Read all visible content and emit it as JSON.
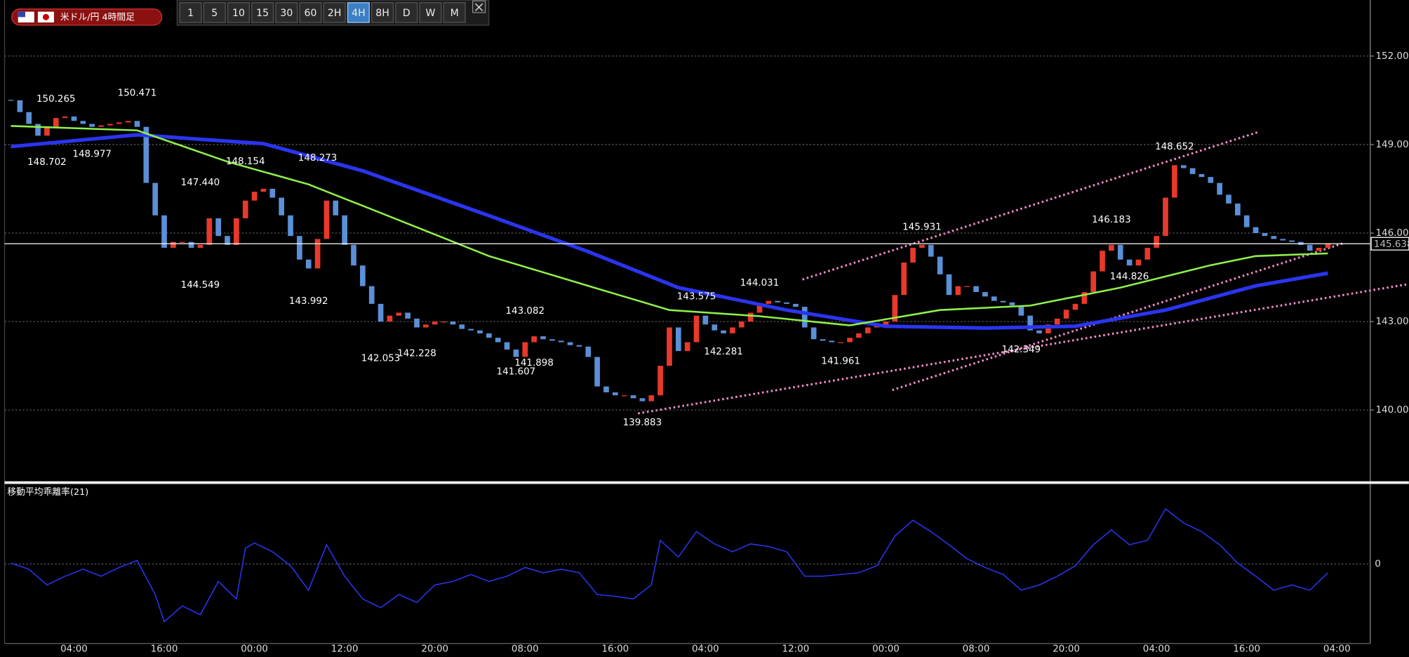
{
  "toolbar": {
    "symbol": "米ドル/円 4時間足",
    "buttons": [
      "1",
      "5",
      "10",
      "15",
      "30",
      "60",
      "2H",
      "4H",
      "8H",
      "D",
      "W",
      "M"
    ],
    "active": 7
  },
  "chart_data": [
    {
      "type": "candlestick",
      "categories": [
        null,
        null,
        null,
        null,
        null,
        null,
        null,
        "04:00",
        null,
        null,
        null,
        null,
        null,
        null,
        null,
        null,
        null,
        "16:00",
        null,
        null,
        null,
        null,
        null,
        null,
        null,
        null,
        null,
        "00:00",
        null,
        null,
        null,
        null,
        null,
        null,
        null,
        null,
        null,
        "12:00",
        null,
        null,
        null,
        null,
        null,
        null,
        null,
        null,
        null,
        "20:00",
        null,
        null,
        null,
        null,
        null,
        null,
        null,
        null,
        null,
        "08:00",
        null,
        null,
        null,
        null,
        null,
        null,
        null,
        null,
        null,
        "16:00",
        null,
        null,
        null,
        null,
        null,
        null,
        null,
        null,
        null,
        "04:00",
        null,
        null,
        null,
        null,
        null,
        null,
        null,
        null,
        null,
        "12:00",
        null,
        null,
        null,
        null,
        null,
        null,
        null,
        null,
        null,
        "00:00",
        null,
        null,
        null,
        null,
        null,
        null,
        null,
        null,
        null,
        "08:00",
        null,
        null,
        null,
        null,
        null,
        null,
        null,
        null,
        null,
        "20:00",
        null,
        null,
        null,
        null,
        null,
        null,
        null,
        null,
        null,
        "04:00",
        null,
        null,
        null,
        null,
        null,
        null,
        null,
        null,
        null,
        "16:00",
        null,
        null,
        null,
        null,
        null,
        null,
        null,
        null,
        null,
        "04:00"
      ],
      "series": [
        {
          "values": [
            150.5,
            150.1,
            149.7,
            149.3,
            149.6,
            149.9,
            149.95,
            149.8,
            149.7,
            149.6,
            149.65,
            149.7,
            149.75,
            149.8,
            149.6,
            147.7,
            146.6,
            145.5,
            145.7,
            145.7,
            145.5,
            145.6,
            146.5,
            145.9,
            145.6,
            146.5,
            147.1,
            147.4,
            147.5,
            147.2,
            146.6,
            145.9,
            145.1,
            144.8,
            145.8,
            147.1,
            146.6,
            145.6,
            144.9,
            144.2,
            143.6,
            143.0,
            143.2,
            143.3,
            143.1,
            142.8,
            142.9,
            143.0,
            143.0,
            142.9,
            142.75,
            142.7,
            142.6,
            142.45,
            142.3,
            142.05,
            141.8,
            142.3,
            142.5,
            142.4,
            142.35,
            142.3,
            142.2,
            142.15,
            141.8,
            140.8,
            140.6,
            140.5,
            140.5,
            140.4,
            140.3,
            140.5,
            141.5,
            142.8,
            142.0,
            142.3,
            143.2,
            142.9,
            142.7,
            142.6,
            142.8,
            143.0,
            143.3,
            143.6,
            143.7,
            143.65,
            143.6,
            143.5,
            142.8,
            142.4,
            142.35,
            142.3,
            142.3,
            142.45,
            142.6,
            142.8,
            142.9,
            143.0,
            143.9,
            145.0,
            145.5,
            145.6,
            145.2,
            144.6,
            143.9,
            144.2,
            144.2,
            144.0,
            143.85,
            143.7,
            143.65,
            143.55,
            143.2,
            142.7,
            142.6,
            142.9,
            143.1,
            143.4,
            143.6,
            144.0,
            144.7,
            145.4,
            145.6,
            145.1,
            144.9,
            145.1,
            145.5,
            145.9,
            147.2,
            148.3,
            148.2,
            148.0,
            147.9,
            147.7,
            147.3,
            147.0,
            146.6,
            146.2,
            146.0,
            145.9,
            145.8,
            145.75,
            145.7,
            145.6,
            145.4,
            145.5,
            145.638,
            null
          ],
          "up_color": "#e8392b",
          "down_color": "#5b8fd6"
        },
        {
          "x": [
            0,
            14,
            28,
            39,
            53,
            64,
            74,
            86,
            97,
            108,
            118,
            128,
            138,
            146
          ],
          "values": [
            148.93,
            149.33,
            149.03,
            148.11,
            146.59,
            145.37,
            144.15,
            143.39,
            142.84,
            142.78,
            142.84,
            143.39,
            144.21,
            144.64
          ],
          "color": "#2a35f0"
        },
        {
          "x": [
            0,
            14,
            24,
            33,
            43,
            53,
            64,
            73,
            83,
            93,
            103,
            113,
            123,
            133,
            138,
            146
          ],
          "values": [
            149.63,
            149.48,
            148.42,
            147.65,
            146.44,
            145.22,
            144.21,
            143.39,
            143.18,
            142.87,
            143.39,
            143.54,
            144.15,
            144.91,
            145.22,
            145.31
          ],
          "color": "#8ef04a"
        }
      ],
      "ylim": [
        137.6,
        153.9
      ],
      "yticks": [
        {
          "value": 140,
          "label": "140.000"
        },
        {
          "value": 143,
          "label": "143.000"
        },
        {
          "value": 146,
          "label": "146.000"
        },
        {
          "value": 149,
          "label": "149.000"
        },
        {
          "value": 152,
          "label": "152.000"
        }
      ],
      "grid": true,
      "last_price": 145.638,
      "high_labels": {
        "x": [
          5,
          14,
          21,
          26,
          34,
          57,
          76,
          83,
          101,
          122,
          129
        ],
        "values": [
          150.265,
          150.471,
          147.44,
          148.154,
          148.273,
          143.082,
          143.575,
          144.031,
          145.931,
          146.183,
          148.652
        ],
        "value_labels": [
          "150.265",
          "150.471",
          "147.440",
          "148.154",
          "148.273",
          "143.082",
          "143.575",
          "144.031",
          "145.931",
          "146.183",
          "148.652"
        ]
      },
      "low_labels": {
        "x": [
          4,
          9,
          21,
          33,
          41,
          45,
          56,
          58,
          70,
          79,
          92,
          112,
          124
        ],
        "values": [
          148.702,
          148.977,
          144.549,
          143.992,
          142.053,
          142.228,
          141.607,
          141.898,
          139.883,
          142.281,
          141.961,
          142.349,
          144.826
        ],
        "value_labels": [
          "148.702",
          "148.977",
          "144.549",
          "143.992",
          "142.053",
          "142.228",
          "141.607",
          "141.898",
          "139.883",
          "142.281",
          "141.961",
          "142.349",
          "144.826"
        ]
      }
    },
    {
      "type": "line",
      "title": "移動平均乖離率(21)",
      "x": [
        0,
        2,
        4,
        6,
        8,
        10,
        12,
        14,
        16,
        17,
        19,
        21,
        23,
        25,
        26,
        27,
        29,
        31,
        33,
        35,
        37,
        39,
        41,
        43,
        45,
        47,
        49,
        51,
        53,
        55,
        57,
        59,
        61,
        63,
        65,
        67,
        69,
        71,
        72,
        74,
        76,
        78,
        80,
        82,
        84,
        86,
        88,
        90,
        92,
        94,
        96,
        98,
        100,
        102,
        104,
        106,
        108,
        110,
        112,
        114,
        116,
        118,
        120,
        122,
        124,
        126,
        128,
        130,
        132,
        134,
        136,
        138,
        140,
        142,
        144,
        146
      ],
      "values": [
        0.05,
        -0.3,
        -1.2,
        -0.7,
        -0.3,
        -0.7,
        -0.2,
        0.2,
        -1.75,
        -3.3,
        -2.4,
        -2.9,
        -1.0,
        -2.0,
        0.9,
        1.2,
        0.7,
        -0.1,
        -1.5,
        1.1,
        -0.7,
        -2.0,
        -2.5,
        -1.75,
        -2.2,
        -1.2,
        -1.0,
        -0.6,
        -1.0,
        -0.7,
        -0.2,
        -0.5,
        -0.3,
        -0.5,
        -1.75,
        -1.85,
        -2.0,
        -1.2,
        1.35,
        0.4,
        1.85,
        1.15,
        0.7,
        1.15,
        1.0,
        0.7,
        -0.7,
        -0.7,
        -0.6,
        -0.5,
        -0.1,
        1.6,
        2.5,
        1.85,
        1.1,
        0.3,
        -0.2,
        -0.6,
        -1.5,
        -1.2,
        -0.7,
        -0.1,
        1.1,
        1.95,
        1.1,
        1.35,
        3.15,
        2.35,
        1.85,
        1.1,
        0.05,
        -0.7,
        -1.5,
        -1.2,
        -1.5,
        -0.5
      ],
      "color": "#2a35f0",
      "ylim": [
        -4.5,
        4.5
      ],
      "yticks": [
        0
      ],
      "grid": true
    }
  ]
}
